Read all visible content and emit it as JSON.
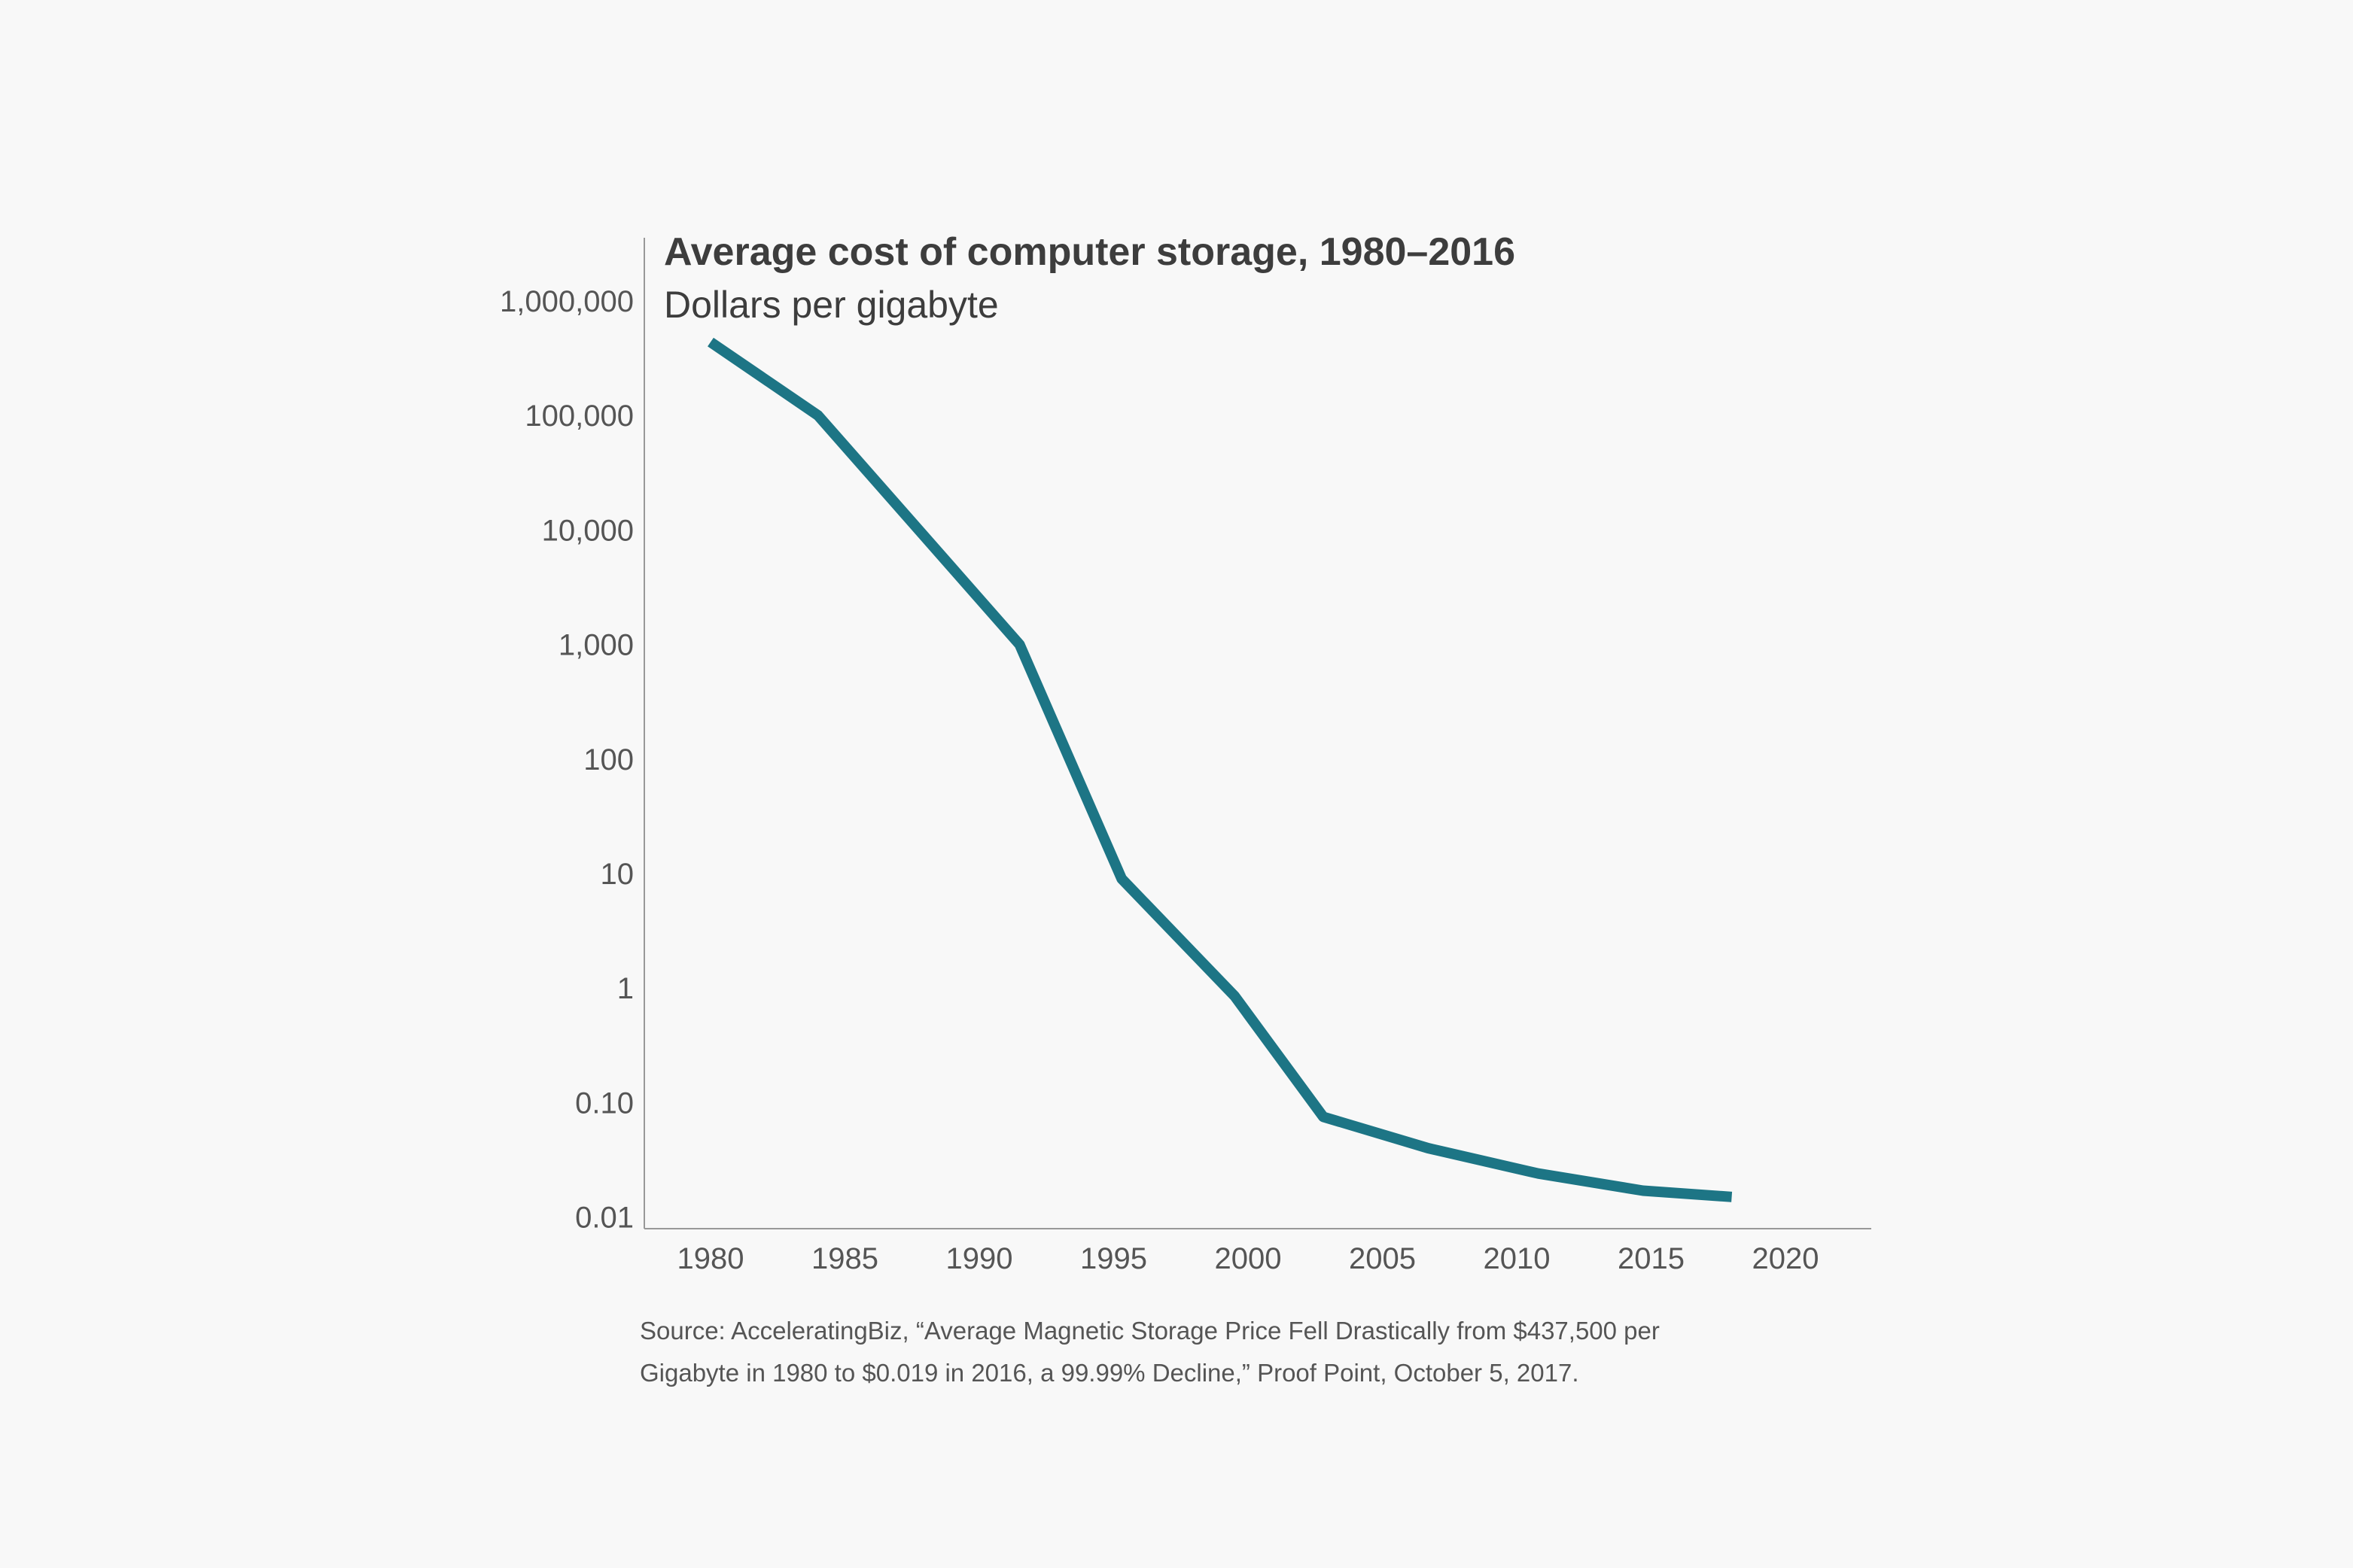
{
  "chart_data": {
    "type": "line",
    "title": "Average cost of computer storage, 1980–2016",
    "subtitle": "Dollars per gigabyte",
    "xlabel": "",
    "ylabel": "",
    "y_scale": "log",
    "xlim": [
      1978,
      2023
    ],
    "ylim": [
      0.01,
      1000000
    ],
    "x_ticks": [
      "1980",
      "1985",
      "1990",
      "1995",
      "2000",
      "2005",
      "2010",
      "2015",
      "2020"
    ],
    "y_ticks": [
      "1,000,000",
      "100,000",
      "10,000",
      "1,000",
      "100",
      "10",
      "1",
      "0.10",
      "0.01"
    ],
    "grid": false,
    "line_color": "#1d7585",
    "series": [
      {
        "x": [
          1980,
          1984,
          1991.5,
          1995.3,
          1999.5,
          2002.8,
          2006.7,
          2010.8,
          2014.7,
          2018
        ],
        "y": [
          437500,
          100000,
          1000,
          9,
          0.85,
          0.075,
          0.04,
          0.024,
          0.017,
          0.015
        ]
      }
    ],
    "source": [
      "Source: AcceleratingBiz, “Average Magnetic Storage Price Fell Drastically from $437,500 per",
      "Gigabyte in 1980 to $0.019 in 2016, a 99.99% Decline,” Proof Point, October 5, 2017."
    ]
  }
}
